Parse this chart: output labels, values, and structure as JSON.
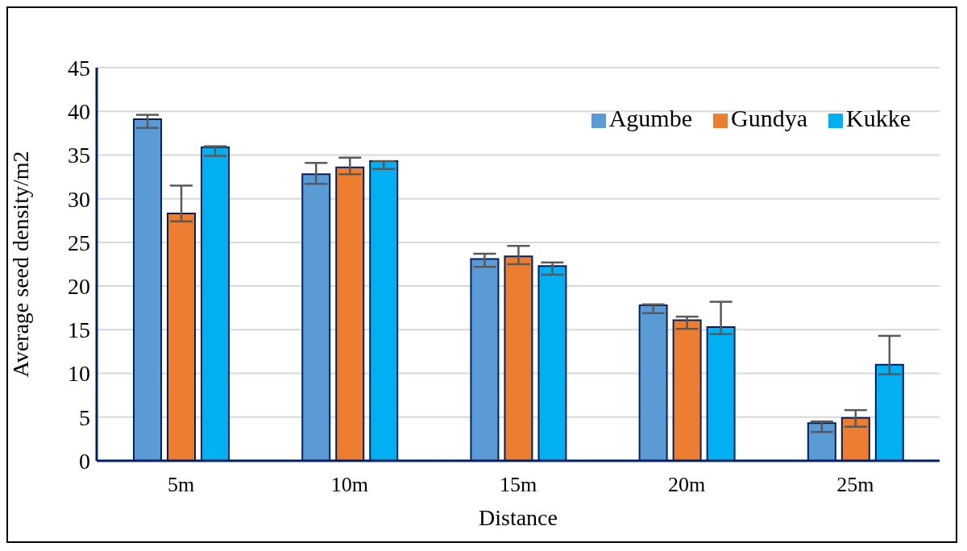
{
  "chart_data": {
    "type": "bar",
    "xlabel": "Distance",
    "ylabel": "Average seed density/m2",
    "categories": [
      "5m",
      "10m",
      "15m",
      "20m",
      "25m"
    ],
    "series": [
      {
        "name": "Agumbe",
        "color": "#5b9bd5",
        "values": [
          39.1,
          32.8,
          23.1,
          17.8,
          4.3
        ],
        "errors": [
          [
            38.1,
            39.6
          ],
          [
            31.7,
            34.1
          ],
          [
            22.2,
            23.7
          ],
          [
            16.9,
            17.9
          ],
          [
            3.3,
            4.5
          ]
        ]
      },
      {
        "name": "Gundya",
        "color": "#ed7d31",
        "values": [
          28.3,
          33.6,
          23.4,
          16.1,
          4.9
        ],
        "errors": [
          [
            27.4,
            31.5
          ],
          [
            32.8,
            34.7
          ],
          [
            22.5,
            24.6
          ],
          [
            15.1,
            16.5
          ],
          [
            3.9,
            5.8
          ]
        ]
      },
      {
        "name": "Kukke",
        "color": "#00b0f0",
        "values": [
          35.9,
          34.3,
          22.3,
          15.3,
          11.0
        ],
        "errors": [
          [
            34.9,
            36.0
          ],
          [
            33.4,
            34.3
          ],
          [
            21.3,
            22.7
          ],
          [
            14.5,
            18.2
          ],
          [
            9.9,
            14.3
          ]
        ]
      }
    ],
    "ylim": [
      0,
      45
    ],
    "yticks": [
      0,
      5,
      10,
      15,
      20,
      25,
      30,
      35,
      40,
      45
    ],
    "grid": "y",
    "legend": "top right"
  }
}
